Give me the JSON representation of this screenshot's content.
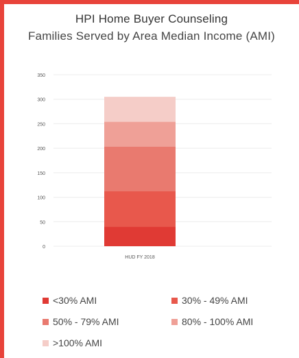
{
  "chart_data": {
    "type": "bar",
    "stacked": true,
    "title": "HPI Home Buyer Counseling",
    "subtitle": "Families Served by Area Median Income (AMI)",
    "categories": [
      "HUD FY 2018"
    ],
    "ylim": [
      0,
      350
    ],
    "yticks": [
      "0",
      "50",
      "100",
      "150",
      "200",
      "250",
      "300",
      "350"
    ],
    "grid": true,
    "legend_position": "bottom",
    "series": [
      {
        "name": "<30% AMI",
        "values": [
          40
        ],
        "color": "#e03a34"
      },
      {
        "name": "30% - 49% AMI",
        "values": [
          72
        ],
        "color": "#e8584c"
      },
      {
        "name": "50% - 79% AMI",
        "values": [
          91
        ],
        "color": "#e97a6f"
      },
      {
        "name": "80% - 100% AMI",
        "values": [
          51
        ],
        "color": "#efa097"
      },
      {
        "name": ">100% AMI",
        "values": [
          51
        ],
        "color": "#f5cdc8"
      }
    ]
  }
}
